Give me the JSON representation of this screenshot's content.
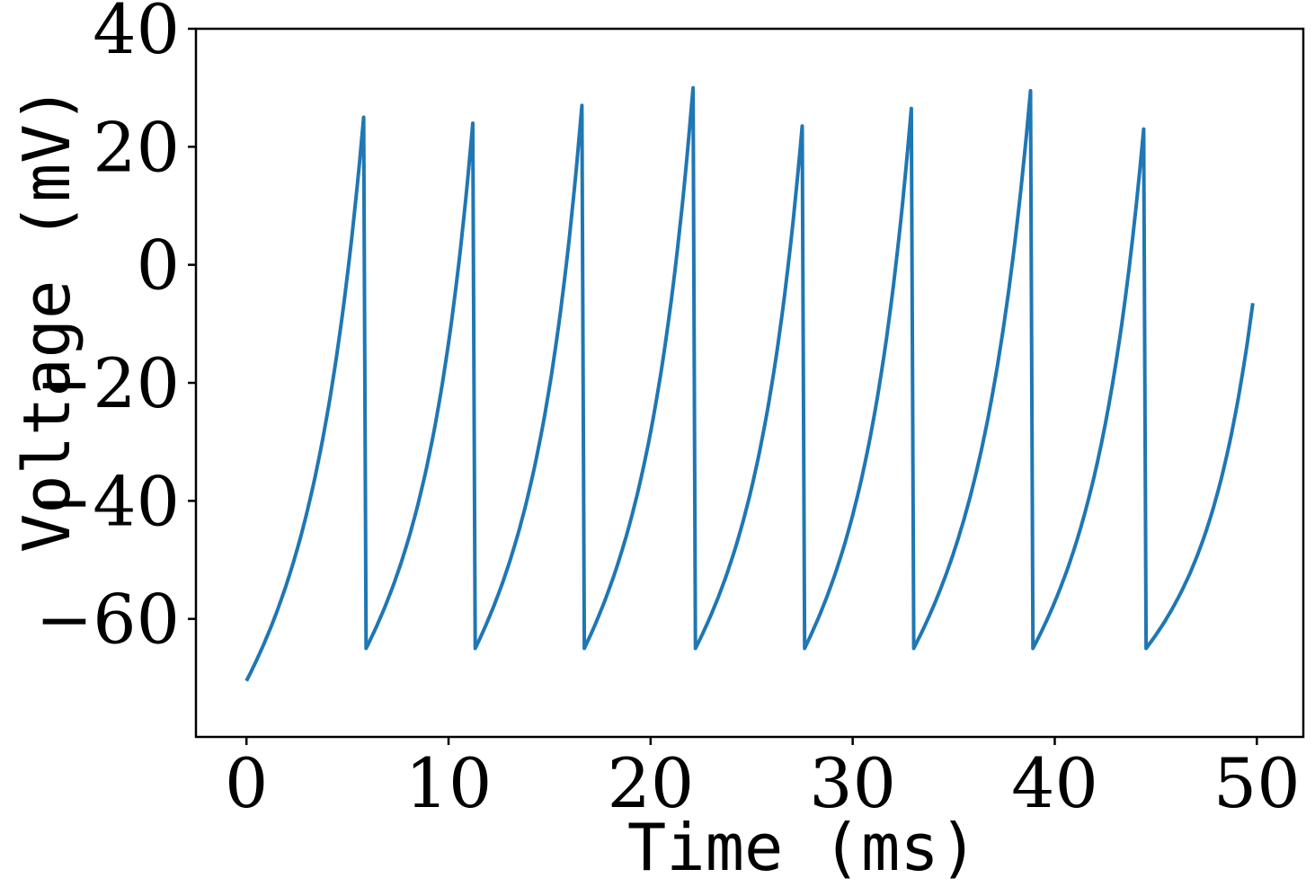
{
  "chart_data": {
    "type": "line",
    "title": "",
    "xlabel": "Time (ms)",
    "ylabel": "Voltage (mV)",
    "xlim": [
      -2.5,
      52.3
    ],
    "ylim": [
      -80,
      40
    ],
    "xticks": [
      0,
      10,
      20,
      30,
      40,
      50
    ],
    "xtick_labels": [
      "0",
      "10",
      "20",
      "30",
      "40",
      "50"
    ],
    "yticks": [
      -60,
      -40,
      -20,
      0,
      20,
      40
    ],
    "ytick_labels": [
      "−60",
      "−40",
      "−20",
      "0",
      "20",
      "40"
    ],
    "grid": false,
    "legend": false,
    "line_color": "#1f77b4",
    "series": [
      {
        "values": {
          "reset_voltage": -65,
          "initial_voltage": -70.5,
          "start_time": 0,
          "end_time": 49.8,
          "end_voltage": -6.5,
          "spikes": [
            {
              "t": 5.8,
              "peak": 25
            },
            {
              "t": 11.2,
              "peak": 24
            },
            {
              "t": 16.6,
              "peak": 27
            },
            {
              "t": 22.1,
              "peak": 30
            },
            {
              "t": 27.5,
              "peak": 23.5
            },
            {
              "t": 32.9,
              "peak": 26.5
            },
            {
              "t": 38.8,
              "peak": 29.5
            },
            {
              "t": 44.4,
              "peak": 23
            }
          ]
        }
      }
    ]
  }
}
